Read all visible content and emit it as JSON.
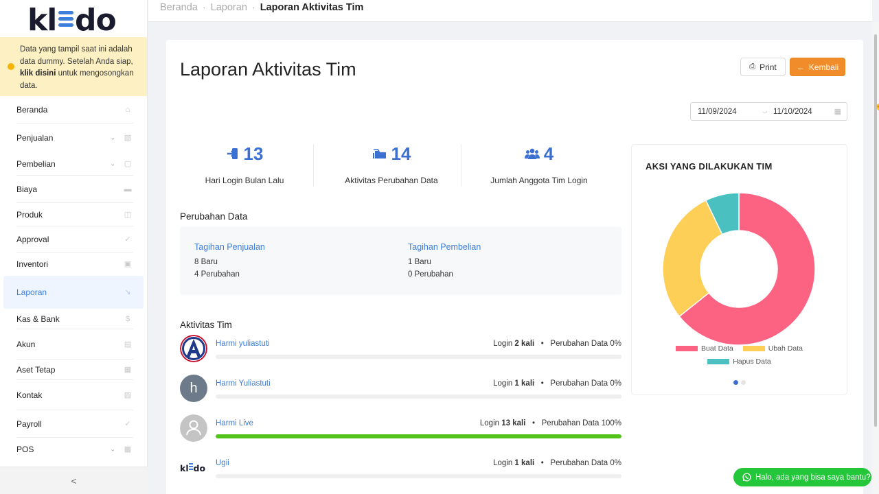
{
  "brand": {
    "logo_text": "kledo"
  },
  "notice": {
    "text1": "Data yang tampil saat ini adalah data dummy. Setelah Anda siap, ",
    "link": "klik disini",
    "text2": " untuk mengosongkan data."
  },
  "sidebar": {
    "items": [
      {
        "label": "Beranda",
        "icon": "home-icon"
      },
      {
        "label": "Penjualan",
        "icon": "shopping-basket-icon",
        "has_children": true
      },
      {
        "label": "Pembelian",
        "icon": "shopping-bag-icon",
        "has_children": true
      },
      {
        "label": "Biaya",
        "icon": "credit-card-icon"
      },
      {
        "label": "Produk",
        "icon": "boxes-icon"
      },
      {
        "label": "Approval",
        "icon": "check-icon"
      },
      {
        "label": "Inventori",
        "icon": "briefcase-icon"
      },
      {
        "label": "Laporan",
        "icon": "line-chart-icon",
        "active": true
      },
      {
        "label": "Kas & Bank",
        "icon": "dollar-icon"
      },
      {
        "label": "Akun",
        "icon": "book-icon"
      },
      {
        "label": "Aset Tetap",
        "icon": "building-icon"
      },
      {
        "label": "Kontak",
        "icon": "contact-card-icon"
      },
      {
        "label": "Payroll",
        "icon": "check-circle-icon"
      },
      {
        "label": "POS",
        "icon": "pos-icon",
        "has_children": true
      }
    ],
    "collapse_label": "<"
  },
  "breadcrumb": [
    "Beranda",
    "Laporan",
    "Laporan Aktivitas Tim"
  ],
  "page": {
    "title": "Laporan Aktivitas Tim",
    "print_label": "Print",
    "back_label": "Kembali",
    "date_from": "11/09/2024",
    "date_to": "11/10/2024"
  },
  "stats": [
    {
      "value": "13",
      "label": "Hari Login Bulan Lalu",
      "icon": "login-icon"
    },
    {
      "value": "14",
      "label": "Aktivitas Perubahan Data",
      "icon": "folders-icon"
    },
    {
      "value": "4",
      "label": "Jumlah Anggota Tim Login",
      "icon": "users-icon"
    }
  ],
  "perubahan": {
    "title": "Perubahan Data",
    "cols": [
      {
        "heading": "Tagihan Penjualan",
        "line1": "8 Baru",
        "line2": "4 Perubahan"
      },
      {
        "heading": "Tagihan Pembelian",
        "line1": "1 Baru",
        "line2": "0 Perubahan"
      }
    ]
  },
  "aktivitas": {
    "title": "Aktivitas Tim",
    "rows": [
      {
        "name": "Harmi yuliastuti",
        "login_prefix": "Login ",
        "login_count": "2",
        "login_suffix": " kali",
        "change_label": "Perubahan Data 0%",
        "progress": 0
      },
      {
        "name": "Harmi Yuliastuti",
        "login_prefix": "Login ",
        "login_count": "1",
        "login_suffix": " kali",
        "change_label": "Perubahan Data 0%",
        "progress": 0,
        "initial": "h"
      },
      {
        "name": "Harmi Live",
        "login_prefix": "Login ",
        "login_count": "13",
        "login_suffix": " kali",
        "change_label": "Perubahan Data 100%",
        "progress": 1
      },
      {
        "name": "Ugii",
        "login_prefix": "Login ",
        "login_count": "1",
        "login_suffix": " kali",
        "change_label": "Perubahan Data 0%",
        "progress": 0
      }
    ]
  },
  "chart_data": {
    "type": "pie",
    "title": "AKSI YANG DILAKUKAN TIM",
    "donut": true,
    "series": [
      {
        "name": "Buat Data",
        "value": 9,
        "color": "#fc6382"
      },
      {
        "name": "Ubah Data",
        "value": 4,
        "color": "#fdcf56"
      },
      {
        "name": "Hapus Data",
        "value": 1,
        "color": "#4bc0c0"
      }
    ]
  },
  "whatsapp": {
    "label": "Halo, ada yang bisa saya bantu?"
  }
}
